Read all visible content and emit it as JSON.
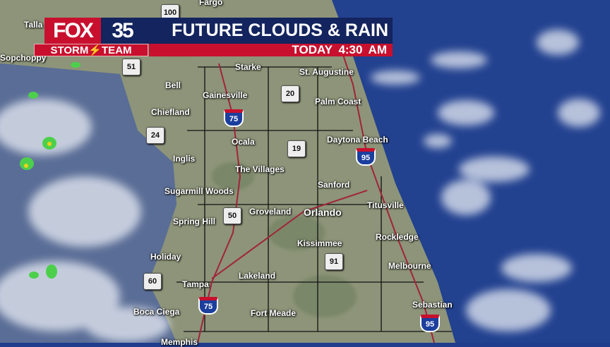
{
  "banner": {
    "logo_fox": "FOX",
    "logo_number": "35",
    "storm_team": "STORM⚡TEAM",
    "title": "FUTURE CLOUDS & RAIN",
    "time": "TODAY 4:30 AM"
  },
  "colors": {
    "brand_red": "#c8102e",
    "brand_navy": "#13245e",
    "ocean": "#1f3d8c",
    "rain_green": "#4cd04c"
  },
  "cities": [
    "Fargo",
    "Talla",
    "Sopchoppy",
    "Starke",
    "St. Augustine",
    "Bell",
    "Gainesville",
    "Palm Coast",
    "Chiefland",
    "Ocala",
    "Daytona Beach",
    "Inglis",
    "The Villages",
    "Sanford",
    "Sugarmill Woods",
    "Groveland",
    "Orlando",
    "Titusville",
    "Spring Hill",
    "Kissimmee",
    "Rockledge",
    "Holiday",
    "Melbourne",
    "Tampa",
    "Lakeland",
    "Boca Ciega",
    "Fort Meade",
    "Sebastian",
    "Memphis"
  ],
  "shields": {
    "state": [
      "100",
      "51",
      "20",
      "24",
      "19",
      "50",
      "91",
      "60"
    ],
    "interstate": [
      "75",
      "95",
      "75",
      "95"
    ]
  }
}
